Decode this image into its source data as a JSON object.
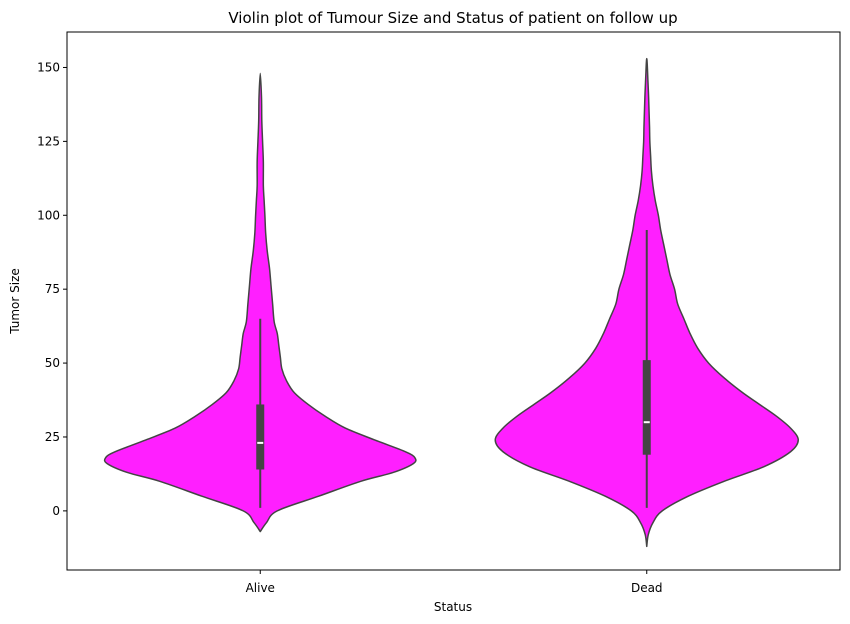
{
  "chart_data": {
    "type": "violin",
    "title": "Violin plot of Tumour Size and Status of patient on follow up",
    "xlabel": "Status",
    "ylabel": "Tumor Size",
    "categories": [
      "Alive",
      "Dead"
    ],
    "ylim": [
      -20,
      162
    ],
    "yticks": [
      0,
      25,
      50,
      75,
      100,
      125,
      150
    ],
    "grid": false,
    "colors": {
      "fill": "#ff00ff",
      "outline": "#444444",
      "median": "#ffffff"
    },
    "violins": [
      {
        "category": "Alive",
        "extent": [
          -7,
          148
        ],
        "box": {
          "q1": 14,
          "median": 23,
          "q3": 36,
          "whisker_low": 1,
          "whisker_high": 65
        },
        "density": [
          [
            -7,
            0.0
          ],
          [
            -4,
            0.04
          ],
          [
            0,
            0.11
          ],
          [
            5,
            0.38
          ],
          [
            10,
            0.65
          ],
          [
            13,
            0.86
          ],
          [
            16,
            0.99
          ],
          [
            18,
            1.0
          ],
          [
            20,
            0.94
          ],
          [
            24,
            0.74
          ],
          [
            28,
            0.55
          ],
          [
            32,
            0.42
          ],
          [
            36,
            0.31
          ],
          [
            40,
            0.22
          ],
          [
            44,
            0.17
          ],
          [
            48,
            0.14
          ],
          [
            52,
            0.13
          ],
          [
            56,
            0.12
          ],
          [
            60,
            0.11
          ],
          [
            64,
            0.09
          ],
          [
            70,
            0.08
          ],
          [
            76,
            0.07
          ],
          [
            82,
            0.06
          ],
          [
            88,
            0.045
          ],
          [
            94,
            0.035
          ],
          [
            100,
            0.03
          ],
          [
            105,
            0.025
          ],
          [
            110,
            0.02
          ],
          [
            118,
            0.02
          ],
          [
            125,
            0.015
          ],
          [
            132,
            0.01
          ],
          [
            140,
            0.008
          ],
          [
            148,
            0.0
          ]
        ]
      },
      {
        "category": "Dead",
        "extent": [
          -12,
          153
        ],
        "box": {
          "q1": 19,
          "median": 30,
          "q3": 51,
          "whisker_low": 1,
          "whisker_high": 95
        },
        "density": [
          [
            -12,
            0.0
          ],
          [
            -8,
            0.01
          ],
          [
            -4,
            0.04
          ],
          [
            0,
            0.1
          ],
          [
            5,
            0.27
          ],
          [
            10,
            0.5
          ],
          [
            15,
            0.76
          ],
          [
            20,
            0.93
          ],
          [
            24,
            0.98
          ],
          [
            28,
            0.93
          ],
          [
            32,
            0.84
          ],
          [
            36,
            0.73
          ],
          [
            40,
            0.62
          ],
          [
            45,
            0.5
          ],
          [
            50,
            0.4
          ],
          [
            55,
            0.33
          ],
          [
            60,
            0.28
          ],
          [
            65,
            0.24
          ],
          [
            70,
            0.2
          ],
          [
            75,
            0.18
          ],
          [
            80,
            0.15
          ],
          [
            85,
            0.13
          ],
          [
            90,
            0.11
          ],
          [
            95,
            0.09
          ],
          [
            100,
            0.075
          ],
          [
            105,
            0.055
          ],
          [
            110,
            0.04
          ],
          [
            115,
            0.03
          ],
          [
            120,
            0.025
          ],
          [
            125,
            0.02
          ],
          [
            130,
            0.018
          ],
          [
            135,
            0.015
          ],
          [
            140,
            0.012
          ],
          [
            145,
            0.008
          ],
          [
            153,
            0.0
          ]
        ]
      }
    ]
  }
}
